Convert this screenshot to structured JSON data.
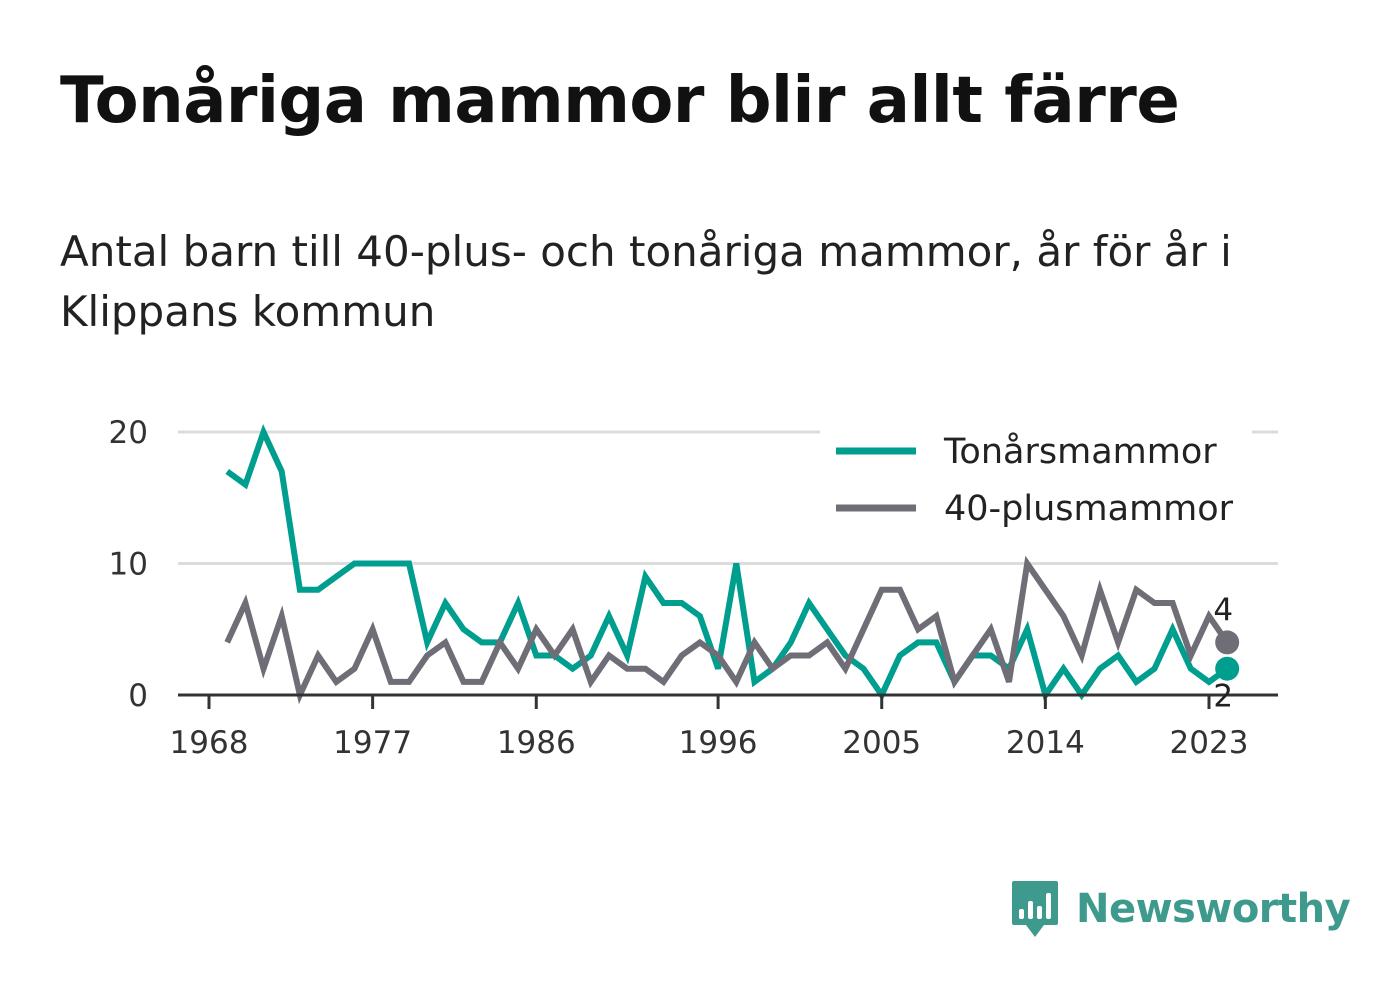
{
  "title": "Tonåriga mammor blir allt färre",
  "subtitle": "Antal barn till 40-plus- och tonåriga mammor, år för år i Klippans kommun",
  "brand": "Newsworthy",
  "chart_data": {
    "type": "line",
    "x": [
      1969,
      1970,
      1971,
      1972,
      1973,
      1974,
      1975,
      1976,
      1977,
      1978,
      1979,
      1980,
      1981,
      1982,
      1983,
      1984,
      1985,
      1986,
      1987,
      1988,
      1989,
      1990,
      1991,
      1992,
      1993,
      1994,
      1995,
      1996,
      1997,
      1998,
      1999,
      2000,
      2001,
      2002,
      2003,
      2004,
      2005,
      2006,
      2007,
      2008,
      2009,
      2010,
      2011,
      2012,
      2013,
      2014,
      2015,
      2016,
      2017,
      2018,
      2019,
      2020,
      2021,
      2022,
      2023,
      2024
    ],
    "series": [
      {
        "name": "Tonårsmammor",
        "color": "#009e8f",
        "values": [
          17,
          16,
          20,
          17,
          8,
          8,
          9,
          10,
          10,
          10,
          10,
          4,
          7,
          5,
          4,
          4,
          7,
          3,
          3,
          2,
          3,
          6,
          3,
          9,
          7,
          7,
          6,
          2,
          10,
          1,
          2,
          4,
          7,
          5,
          3,
          2,
          0,
          3,
          4,
          4,
          1,
          3,
          3,
          2,
          5,
          0,
          2,
          0,
          2,
          3,
          1,
          2,
          5,
          2,
          1,
          2
        ]
      },
      {
        "name": "40-plusmammor",
        "color": "#6f6e76",
        "values": [
          4,
          7,
          2,
          6,
          0,
          3,
          1,
          2,
          5,
          1,
          1,
          3,
          4,
          1,
          1,
          4,
          2,
          5,
          3,
          5,
          1,
          3,
          2,
          2,
          1,
          3,
          4,
          3,
          1,
          4,
          2,
          3,
          3,
          4,
          2,
          5,
          8,
          8,
          5,
          6,
          1,
          3,
          5,
          1,
          10,
          8,
          6,
          3,
          8,
          4,
          8,
          7,
          7,
          3,
          6,
          4
        ]
      }
    ],
    "x_ticks": [
      "1968",
      "1977",
      "1986",
      "1996",
      "2005",
      "2014",
      "2023"
    ],
    "y_ticks": [
      "0",
      "10",
      "20"
    ],
    "ylim": [
      0,
      20
    ],
    "xlim": [
      1968,
      2025
    ],
    "grid": true,
    "legend_position": "top-right",
    "end_labels": [
      "4",
      "2"
    ]
  }
}
